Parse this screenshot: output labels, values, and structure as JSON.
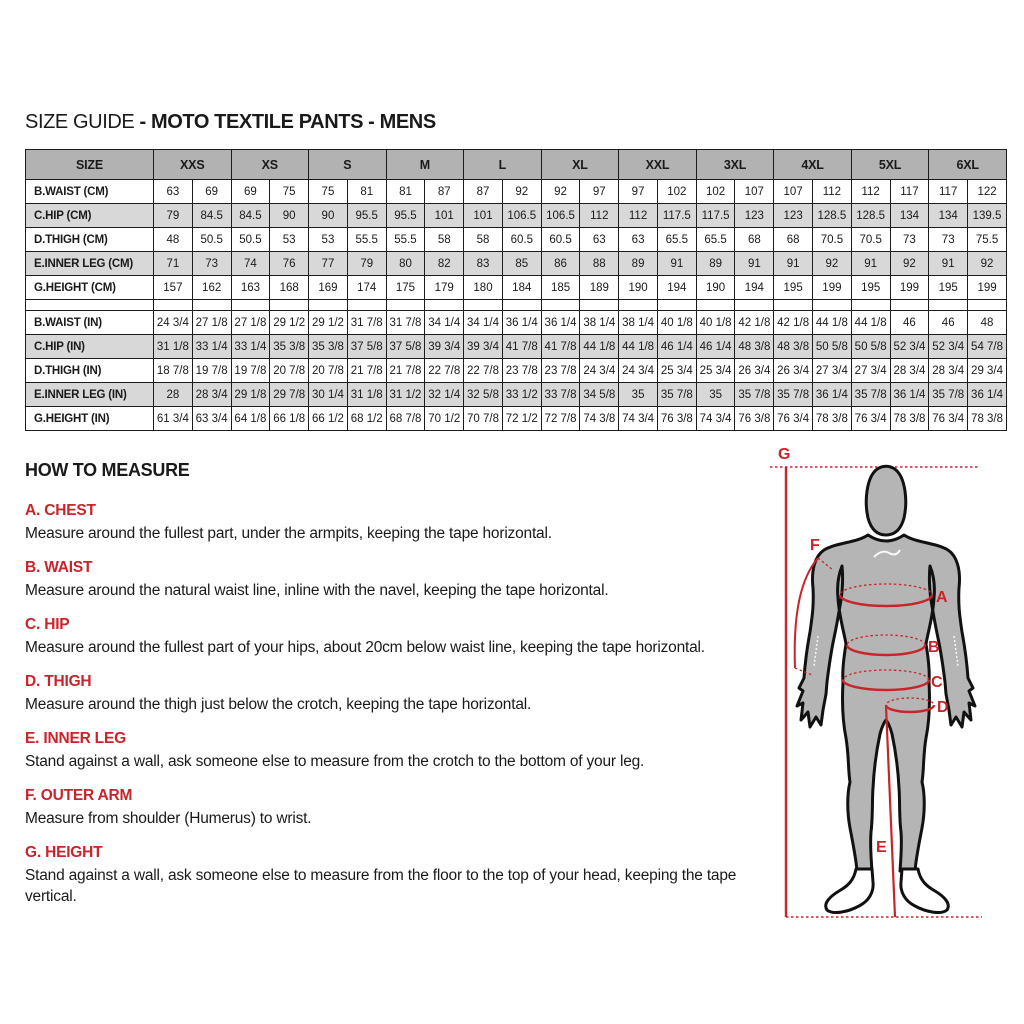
{
  "title": {
    "normal": "SIZE GUIDE",
    "bold": "- MOTO TEXTILE PANTS - MENS"
  },
  "size_table": {
    "corner_label": "SIZE",
    "sizes": [
      "XXS",
      "XS",
      "S",
      "M",
      "L",
      "XL",
      "XXL",
      "3XL",
      "4XL",
      "5XL",
      "6XL"
    ],
    "rows_cm": [
      {
        "label": "B.WAIST (CM)",
        "values": [
          "63",
          "69",
          "69",
          "75",
          "75",
          "81",
          "81",
          "87",
          "87",
          "92",
          "92",
          "97",
          "97",
          "102",
          "102",
          "107",
          "107",
          "112",
          "112",
          "117",
          "117",
          "122"
        ]
      },
      {
        "label": "C.HIP (CM)",
        "values": [
          "79",
          "84.5",
          "84.5",
          "90",
          "90",
          "95.5",
          "95.5",
          "101",
          "101",
          "106.5",
          "106.5",
          "112",
          "112",
          "117.5",
          "117.5",
          "123",
          "123",
          "128.5",
          "128.5",
          "134",
          "134",
          "139.5"
        ]
      },
      {
        "label": "D.THIGH (CM)",
        "values": [
          "48",
          "50.5",
          "50.5",
          "53",
          "53",
          "55.5",
          "55.5",
          "58",
          "58",
          "60.5",
          "60.5",
          "63",
          "63",
          "65.5",
          "65.5",
          "68",
          "68",
          "70.5",
          "70.5",
          "73",
          "73",
          "75.5"
        ]
      },
      {
        "label": "E.INNER LEG (CM)",
        "values": [
          "71",
          "73",
          "74",
          "76",
          "77",
          "79",
          "80",
          "82",
          "83",
          "85",
          "86",
          "88",
          "89",
          "91",
          "89",
          "91",
          "91",
          "92",
          "91",
          "92",
          "91",
          "92"
        ]
      },
      {
        "label": "G.HEIGHT (CM)",
        "values": [
          "157",
          "162",
          "163",
          "168",
          "169",
          "174",
          "175",
          "179",
          "180",
          "184",
          "185",
          "189",
          "190",
          "194",
          "190",
          "194",
          "195",
          "199",
          "195",
          "199",
          "195",
          "199"
        ]
      }
    ],
    "rows_in": [
      {
        "label": "B.WAIST (IN)",
        "values": [
          "24 3/4",
          "27 1/8",
          "27 1/8",
          "29 1/2",
          "29 1/2",
          "31 7/8",
          "31 7/8",
          "34 1/4",
          "34 1/4",
          "36 1/4",
          "36 1/4",
          "38 1/4",
          "38 1/4",
          "40 1/8",
          "40 1/8",
          "42 1/8",
          "42 1/8",
          "44 1/8",
          "44 1/8",
          "46",
          "46",
          "48"
        ]
      },
      {
        "label": "C.HIP (IN)",
        "values": [
          "31 1/8",
          "33 1/4",
          "33 1/4",
          "35 3/8",
          "35 3/8",
          "37 5/8",
          "37 5/8",
          "39 3/4",
          "39 3/4",
          "41 7/8",
          "41 7/8",
          "44 1/8",
          "44 1/8",
          "46 1/4",
          "46 1/4",
          "48 3/8",
          "48 3/8",
          "50 5/8",
          "50 5/8",
          "52 3/4",
          "52 3/4",
          "54 7/8"
        ]
      },
      {
        "label": "D.THIGH (IN)",
        "values": [
          "18 7/8",
          "19 7/8",
          "19 7/8",
          "20 7/8",
          "20 7/8",
          "21 7/8",
          "21 7/8",
          "22 7/8",
          "22 7/8",
          "23 7/8",
          "23 7/8",
          "24 3/4",
          "24 3/4",
          "25 3/4",
          "25 3/4",
          "26 3/4",
          "26 3/4",
          "27 3/4",
          "27 3/4",
          "28 3/4",
          "28 3/4",
          "29 3/4"
        ]
      },
      {
        "label": "E.INNER LEG (IN)",
        "values": [
          "28",
          "28 3/4",
          "29 1/8",
          "29 7/8",
          "30 1/4",
          "31 1/8",
          "31 1/2",
          "32 1/4",
          "32 5/8",
          "33 1/2",
          "33 7/8",
          "34 5/8",
          "35",
          "35 7/8",
          "35",
          "35 7/8",
          "35 7/8",
          "36 1/4",
          "35 7/8",
          "36 1/4",
          "35 7/8",
          "36 1/4"
        ]
      },
      {
        "label": "G.HEIGHT (IN)",
        "values": [
          "61 3/4",
          "63 3/4",
          "64 1/8",
          "66 1/8",
          "66 1/2",
          "68 1/2",
          "68 7/8",
          "70 1/2",
          "70 7/8",
          "72 1/2",
          "72 7/8",
          "74 3/8",
          "74 3/4",
          "76 3/8",
          "74 3/4",
          "76 3/8",
          "76 3/4",
          "78 3/8",
          "76 3/4",
          "78 3/8",
          "76 3/4",
          "78 3/8"
        ]
      }
    ]
  },
  "how_to_measure": {
    "heading": "HOW TO MEASURE",
    "sections": [
      {
        "label": "A. CHEST",
        "text": "Measure around the fullest part, under the armpits, keeping the tape horizontal."
      },
      {
        "label": "B. WAIST",
        "text": "Measure around the natural waist line, inline with the navel, keeping the tape horizontal."
      },
      {
        "label": "C. HIP",
        "text": "Measure around the fullest part of your hips, about 20cm below waist line, keeping the tape horizontal."
      },
      {
        "label": "D. THIGH",
        "text": "Measure around the thigh just below the crotch, keeping the tape horizontal."
      },
      {
        "label": "E. INNER LEG",
        "text": "Stand against a wall, ask someone else to measure from the crotch to the bottom of your leg."
      },
      {
        "label": "F. OUTER ARM",
        "text": "Measure from shoulder (Humerus) to wrist."
      },
      {
        "label": "G. HEIGHT",
        "text": "Stand against a wall, ask someone else to measure from the floor to the top of your head, keeping the tape vertical."
      }
    ]
  },
  "diagram": {
    "labels": {
      "g": "G",
      "f": "F",
      "a": "A",
      "b": "B",
      "c": "C",
      "d": "D",
      "e": "E"
    }
  },
  "colors": {
    "accent_red": "#c9242a",
    "header_gray": "#b2b2b2",
    "row_gray": "#d8d8d8",
    "body_gray": "#b5b5b5"
  }
}
